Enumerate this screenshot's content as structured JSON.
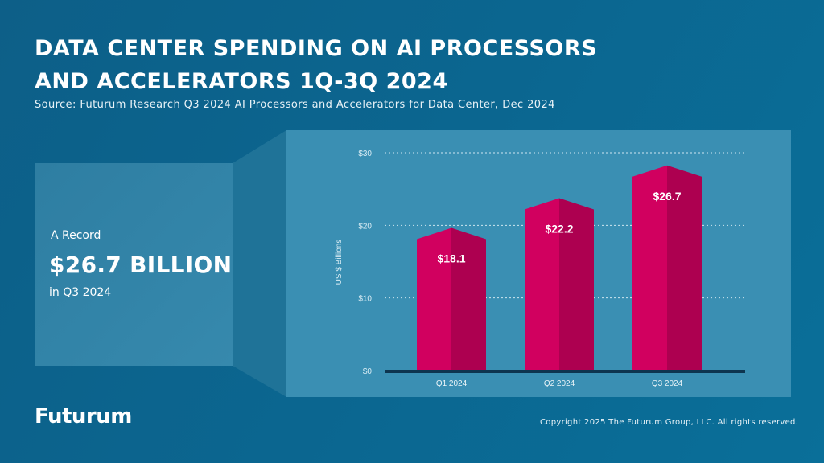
{
  "title_line1": "DATA CENTER SPENDING ON AI PROCESSORS",
  "title_line2": "AND ACCELERATORS 1Q-3Q 2024",
  "source": "Source: Futurum Research Q3 2024 AI Processors and Accelerators for Data Center, Dec 2024",
  "callout": {
    "lead": "A Record",
    "value": "$26.7 BILLION",
    "period": "in Q3 2024"
  },
  "logo": "Futurum",
  "copyright": "Copyright 2025 The Futurum Group, LLC. All rights reserved.",
  "colors": {
    "bar_light": "#d1005f",
    "bar_dark": "#ad0050",
    "background": "#0b6690",
    "panel": "#3a8fb3"
  },
  "chart_data": {
    "type": "bar",
    "categories": [
      "Q1 2024",
      "Q2 2024",
      "Q3 2024"
    ],
    "values": [
      18.1,
      22.2,
      26.7
    ],
    "data_labels": [
      "$18.1",
      "$22.2",
      "$26.7"
    ],
    "ylabel": "US $ Billions",
    "ylim": [
      0,
      30
    ],
    "yticks": [
      0,
      10,
      20,
      30
    ],
    "ytick_labels": [
      "$0",
      "$10",
      "$20",
      "$30"
    ],
    "grid": true
  }
}
